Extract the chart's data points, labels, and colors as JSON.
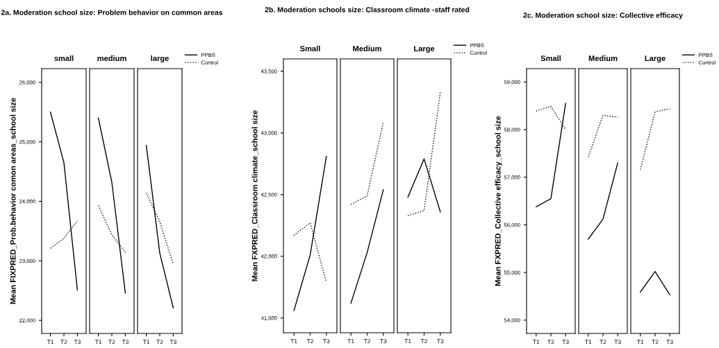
{
  "chart_data": [
    {
      "type": "line",
      "title": "2a. Moderation school size: Problem behavior on common areas",
      "subtitle": "small",
      "ylabel": "Mean FIXPRED_Prob.behavior comon areas_school size",
      "categories": [
        "T1",
        "T2",
        "T3"
      ],
      "ylim": [
        21780,
        26230
      ],
      "yticks": [
        {
          "value": 22000,
          "label": "22,000"
        },
        {
          "value": 23000,
          "label": "23,000"
        },
        {
          "value": 24000,
          "label": "24,000"
        },
        {
          "value": 25000,
          "label": "25,000"
        },
        {
          "value": 26000,
          "label": "26,000"
        }
      ],
      "series": [
        {
          "color": "#000000",
          "line_style": "solid",
          "values": [
            25500,
            24650,
            22510
          ]
        },
        {
          "color": "#000000",
          "line_style": "dotted",
          "values": [
            23210,
            23380,
            23670
          ]
        }
      ]
    },
    {
      "type": "line",
      "subtitle": "medium",
      "categories": [
        "T1",
        "T2",
        "T3"
      ],
      "ylim": [
        21780,
        26230
      ],
      "tick_labels": "x",
      "series": [
        {
          "color": "#000000",
          "line_style": "solid",
          "values": [
            25400,
            24320,
            22460
          ]
        },
        {
          "color": "#000000",
          "line_style": "dotted",
          "values": [
            23930,
            23440,
            23140
          ]
        }
      ]
    },
    {
      "type": "line",
      "subtitle": "large",
      "categories": [
        "T1",
        "T2",
        "T3"
      ],
      "ylim": [
        21780,
        26230
      ],
      "tick_labels": "x",
      "legend": "top right",
      "series": [
        {
          "name": "PPBS",
          "color": "#000000",
          "line_style": "solid",
          "values": [
            24940,
            23130,
            22210
          ]
        },
        {
          "name": "Control",
          "color": "#000000",
          "line_style": "dotted",
          "values": [
            24140,
            23660,
            22940
          ]
        }
      ]
    },
    {
      "type": "line",
      "title": "2b. Moderation schools size: Classroom climate -staff rated",
      "subtitle": "Small",
      "ylabel": "Mean FXPRED_Classroom climate_school size",
      "categories": [
        "T1",
        "T2",
        "T3"
      ],
      "ylim": [
        41380,
        43600
      ],
      "yticks": [
        {
          "value": 41500,
          "label": "41,500"
        },
        {
          "value": 42000,
          "label": "42,000"
        },
        {
          "value": 42500,
          "label": "42,500"
        },
        {
          "value": 43000,
          "label": "43,000"
        },
        {
          "value": 43500,
          "label": "43,500"
        }
      ],
      "series": [
        {
          "color": "#000000",
          "line_style": "solid",
          "values": [
            41560,
            42010,
            42810
          ]
        },
        {
          "color": "#000000",
          "line_style": "dotted",
          "values": [
            42170,
            42270,
            41790
          ]
        }
      ]
    },
    {
      "type": "line",
      "subtitle": "Medium",
      "categories": [
        "T1",
        "T2",
        "T3"
      ],
      "ylim": [
        41380,
        43600
      ],
      "tick_labels": "x",
      "series": [
        {
          "color": "#000000",
          "line_style": "solid",
          "values": [
            41620,
            42030,
            42540
          ]
        },
        {
          "color": "#000000",
          "line_style": "dotted",
          "values": [
            42420,
            42490,
            43090
          ]
        }
      ]
    },
    {
      "type": "line",
      "subtitle": "Large",
      "categories": [
        "T1",
        "T2",
        "T3"
      ],
      "ylim": [
        41380,
        43600
      ],
      "tick_labels": "x",
      "legend": "top right",
      "series": [
        {
          "name": "PPBS",
          "color": "#000000",
          "line_style": "solid",
          "values": [
            42480,
            42790,
            42360
          ]
        },
        {
          "name": "Control",
          "color": "#000000",
          "line_style": "dotted",
          "values": [
            42330,
            42370,
            43330
          ]
        }
      ]
    },
    {
      "type": "line",
      "title": "2c. Moderation school size: Collective efficacy",
      "subtitle": "Small",
      "ylabel": "Mean FXPRED_Collective efficacy_school size",
      "categories": [
        "T1",
        "T2",
        "T3"
      ],
      "ylim": [
        53720,
        59280
      ],
      "yticks": [
        {
          "value": 54000,
          "label": "54,000"
        },
        {
          "value": 55000,
          "label": "55,000"
        },
        {
          "value": 56000,
          "label": "56,000"
        },
        {
          "value": 57000,
          "label": "57,000"
        },
        {
          "value": 58000,
          "label": "58,000"
        },
        {
          "value": 59000,
          "label": "59,000"
        }
      ],
      "series": [
        {
          "color": "#000000",
          "line_style": "solid",
          "values": [
            56380,
            56550,
            58550
          ]
        },
        {
          "color": "#000000",
          "line_style": "dotted",
          "values": [
            58390,
            58490,
            58000
          ]
        }
      ]
    },
    {
      "type": "line",
      "subtitle": "Medium",
      "categories": [
        "T1",
        "T2",
        "T3"
      ],
      "ylim": [
        53720,
        59280
      ],
      "tick_labels": "x",
      "series": [
        {
          "color": "#000000",
          "line_style": "solid",
          "values": [
            55700,
            56120,
            57300
          ]
        },
        {
          "color": "#000000",
          "line_style": "dotted",
          "values": [
            57420,
            58300,
            58260
          ]
        }
      ]
    },
    {
      "type": "line",
      "subtitle": "Large",
      "categories": [
        "T1",
        "T2",
        "T3"
      ],
      "ylim": [
        53720,
        59280
      ],
      "tick_labels": "x",
      "legend": "top right",
      "series": [
        {
          "name": "PPBS",
          "color": "#000000",
          "line_style": "solid",
          "values": [
            54590,
            55020,
            54530
          ]
        },
        {
          "name": "Control",
          "color": "#000000",
          "line_style": "dotted",
          "values": [
            57160,
            58370,
            58440
          ]
        }
      ]
    }
  ]
}
